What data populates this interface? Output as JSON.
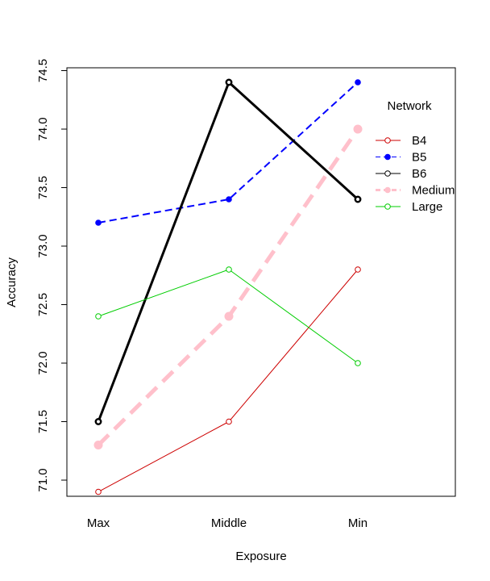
{
  "chart_data": {
    "type": "line",
    "xlabel": "Exposure",
    "ylabel": "Accuracy",
    "categories": [
      "Max",
      "Middle",
      "Min"
    ],
    "ylim": [
      70.84,
      74.5
    ],
    "yticks": [
      71.0,
      71.5,
      72.0,
      72.5,
      73.0,
      73.5,
      74.0,
      74.5
    ],
    "ytick_labels": [
      "71.0",
      "71.5",
      "72.0",
      "72.5",
      "73.0",
      "73.5",
      "74.0",
      "74.5"
    ],
    "grid": false,
    "legend": {
      "title": "Network",
      "placement": "top-right"
    },
    "series": [
      {
        "name": "B4",
        "values": [
          70.9,
          71.5,
          72.8
        ],
        "color": "#CD0000",
        "dash": "solid",
        "marker": "open-circle",
        "weight": "thin"
      },
      {
        "name": "B5",
        "values": [
          73.2,
          73.4,
          74.4
        ],
        "color": "#0000FF",
        "dash": "dashed",
        "marker": "filled-circle",
        "weight": "medium"
      },
      {
        "name": "B6",
        "values": [
          71.5,
          74.4,
          73.4
        ],
        "color": "#000000",
        "dash": "solid",
        "marker": "open-circle",
        "weight": "thick"
      },
      {
        "name": "Medium",
        "values": [
          71.3,
          72.4,
          74.0
        ],
        "color": "#FFC0CB",
        "dash": "dashed",
        "marker": "filled-circle",
        "weight": "heavy"
      },
      {
        "name": "Large",
        "values": [
          72.4,
          72.8,
          72.0
        ],
        "color": "#00CD00",
        "dash": "solid",
        "marker": "open-circle",
        "weight": "thin"
      }
    ]
  }
}
